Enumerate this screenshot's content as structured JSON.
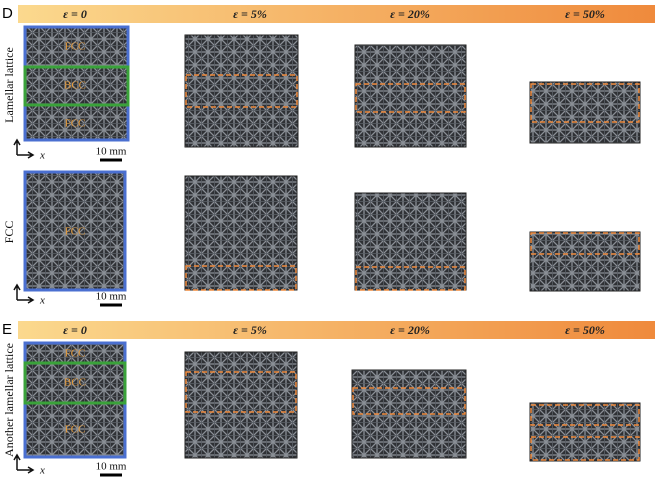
{
  "panels": [
    {
      "label": "D",
      "strains": [
        "ε = 0",
        "ε = 5%",
        "ε = 20%",
        "ε = 50%"
      ],
      "rows": [
        {
          "label": "Lamellar lattice",
          "layers": [
            "FCC",
            "BCC",
            "FCC"
          ],
          "axis": "x",
          "scale_bar": "10 mm"
        },
        {
          "label": "FCC",
          "layers": [
            "FCC"
          ],
          "axis": "x",
          "scale_bar": "10 mm"
        }
      ]
    },
    {
      "label": "E",
      "strains": [
        "ε = 0",
        "ε = 5%",
        "ε = 20%",
        "ε = 50%"
      ],
      "rows": [
        {
          "label": "Another lamellar lattice",
          "layers": [
            "FCC",
            "BCC",
            "FCC"
          ],
          "axis": "x",
          "scale_bar": "10 mm"
        }
      ]
    }
  ]
}
